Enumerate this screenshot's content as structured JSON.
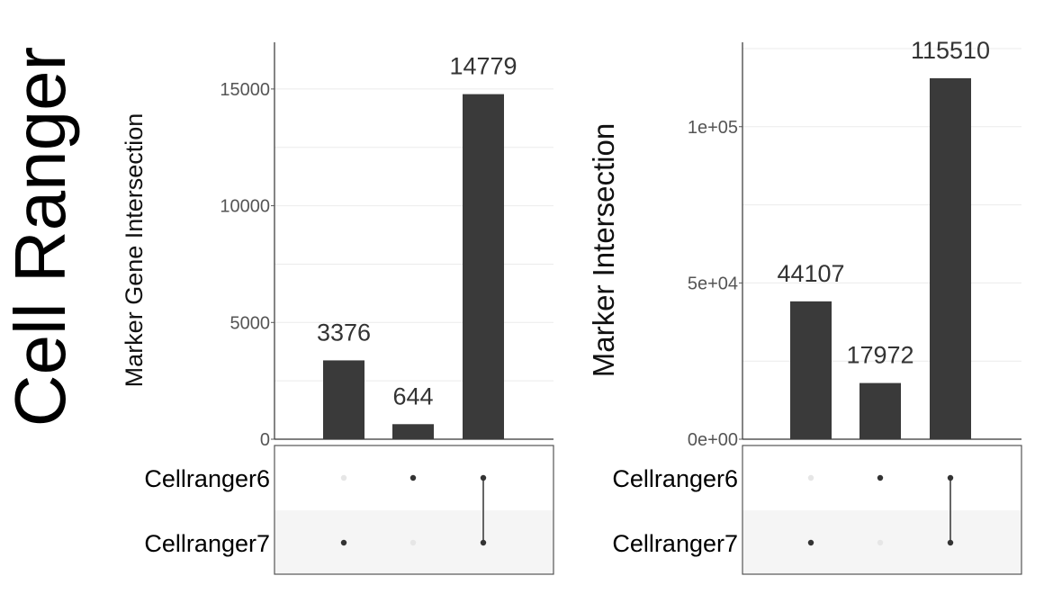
{
  "page_title": "Cell Ranger",
  "chart_data": [
    {
      "type": "upset",
      "ylabel": "Marker Gene Intersection",
      "ylim": [
        0,
        17000
      ],
      "yticks": [
        0,
        5000,
        10000,
        15000
      ],
      "ytick_labels": [
        "0",
        "5000",
        "10000",
        "15000"
      ],
      "sets": [
        "Cellranger6",
        "Cellranger7"
      ],
      "intersections": [
        {
          "members": [
            false,
            true
          ],
          "value": 3376,
          "label": "3376"
        },
        {
          "members": [
            true,
            false
          ],
          "value": 644,
          "label": "644"
        },
        {
          "members": [
            true,
            true
          ],
          "value": 14779,
          "label": "14779"
        }
      ],
      "grid": true,
      "bar_color": "#3a3a3a",
      "dot_active_color": "#333333",
      "dot_inactive_color": "#e6e6e6"
    },
    {
      "type": "upset",
      "ylabel": "Marker Intersection",
      "ylim": [
        0,
        127000
      ],
      "yticks": [
        0,
        50000,
        100000
      ],
      "ytick_labels": [
        "0e+00",
        "5e+04",
        "1e+05"
      ],
      "sets": [
        "Cellranger6",
        "Cellranger7"
      ],
      "intersections": [
        {
          "members": [
            false,
            true
          ],
          "value": 44107,
          "label": "44107"
        },
        {
          "members": [
            true,
            false
          ],
          "value": 17972,
          "label": "17972"
        },
        {
          "members": [
            true,
            true
          ],
          "value": 115510,
          "label": "115510"
        }
      ],
      "grid": true,
      "bar_color": "#3a3a3a",
      "dot_active_color": "#333333",
      "dot_inactive_color": "#e6e6e6"
    }
  ]
}
